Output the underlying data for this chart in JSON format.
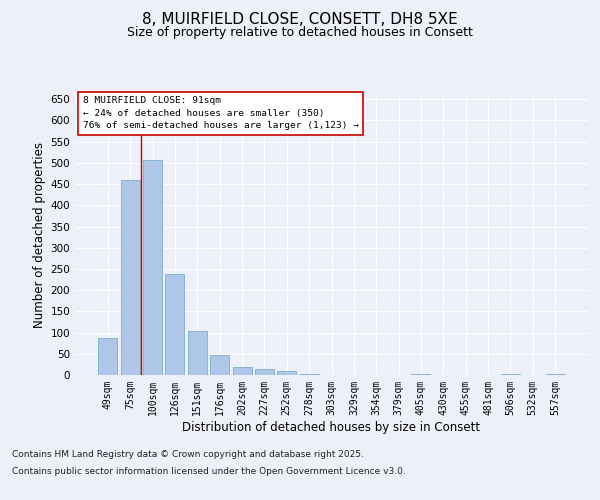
{
  "title": "8, MUIRFIELD CLOSE, CONSETT, DH8 5XE",
  "subtitle": "Size of property relative to detached houses in Consett",
  "xlabel": "Distribution of detached houses by size in Consett",
  "ylabel": "Number of detached properties",
  "categories": [
    "49sqm",
    "75sqm",
    "100sqm",
    "126sqm",
    "151sqm",
    "176sqm",
    "202sqm",
    "227sqm",
    "252sqm",
    "278sqm",
    "303sqm",
    "329sqm",
    "354sqm",
    "379sqm",
    "405sqm",
    "430sqm",
    "455sqm",
    "481sqm",
    "506sqm",
    "532sqm",
    "557sqm"
  ],
  "values": [
    88,
    460,
    507,
    238,
    104,
    47,
    18,
    13,
    9,
    3,
    0,
    0,
    0,
    0,
    3,
    0,
    0,
    0,
    3,
    0,
    3
  ],
  "bar_color": "#aec6e8",
  "bar_edge_color": "#7aafc8",
  "vline_x": 1.5,
  "vline_color": "#cc0000",
  "annotation_title": "8 MUIRFIELD CLOSE: 91sqm",
  "annotation_line1": "← 24% of detached houses are smaller (350)",
  "annotation_line2": "76% of semi-detached houses are larger (1,123) →",
  "annotation_box_color": "#ffffff",
  "annotation_box_edge": "#cc0000",
  "ylim": [
    0,
    660
  ],
  "yticks": [
    0,
    50,
    100,
    150,
    200,
    250,
    300,
    350,
    400,
    450,
    500,
    550,
    600,
    650
  ],
  "footer_line1": "Contains HM Land Registry data © Crown copyright and database right 2025.",
  "footer_line2": "Contains public sector information licensed under the Open Government Licence v3.0.",
  "bg_color": "#edf0f8",
  "plot_bg_color": "#edf0f8",
  "title_fontsize": 11,
  "subtitle_fontsize": 9,
  "tick_fontsize": 7,
  "label_fontsize": 8.5,
  "footer_fontsize": 6.5
}
